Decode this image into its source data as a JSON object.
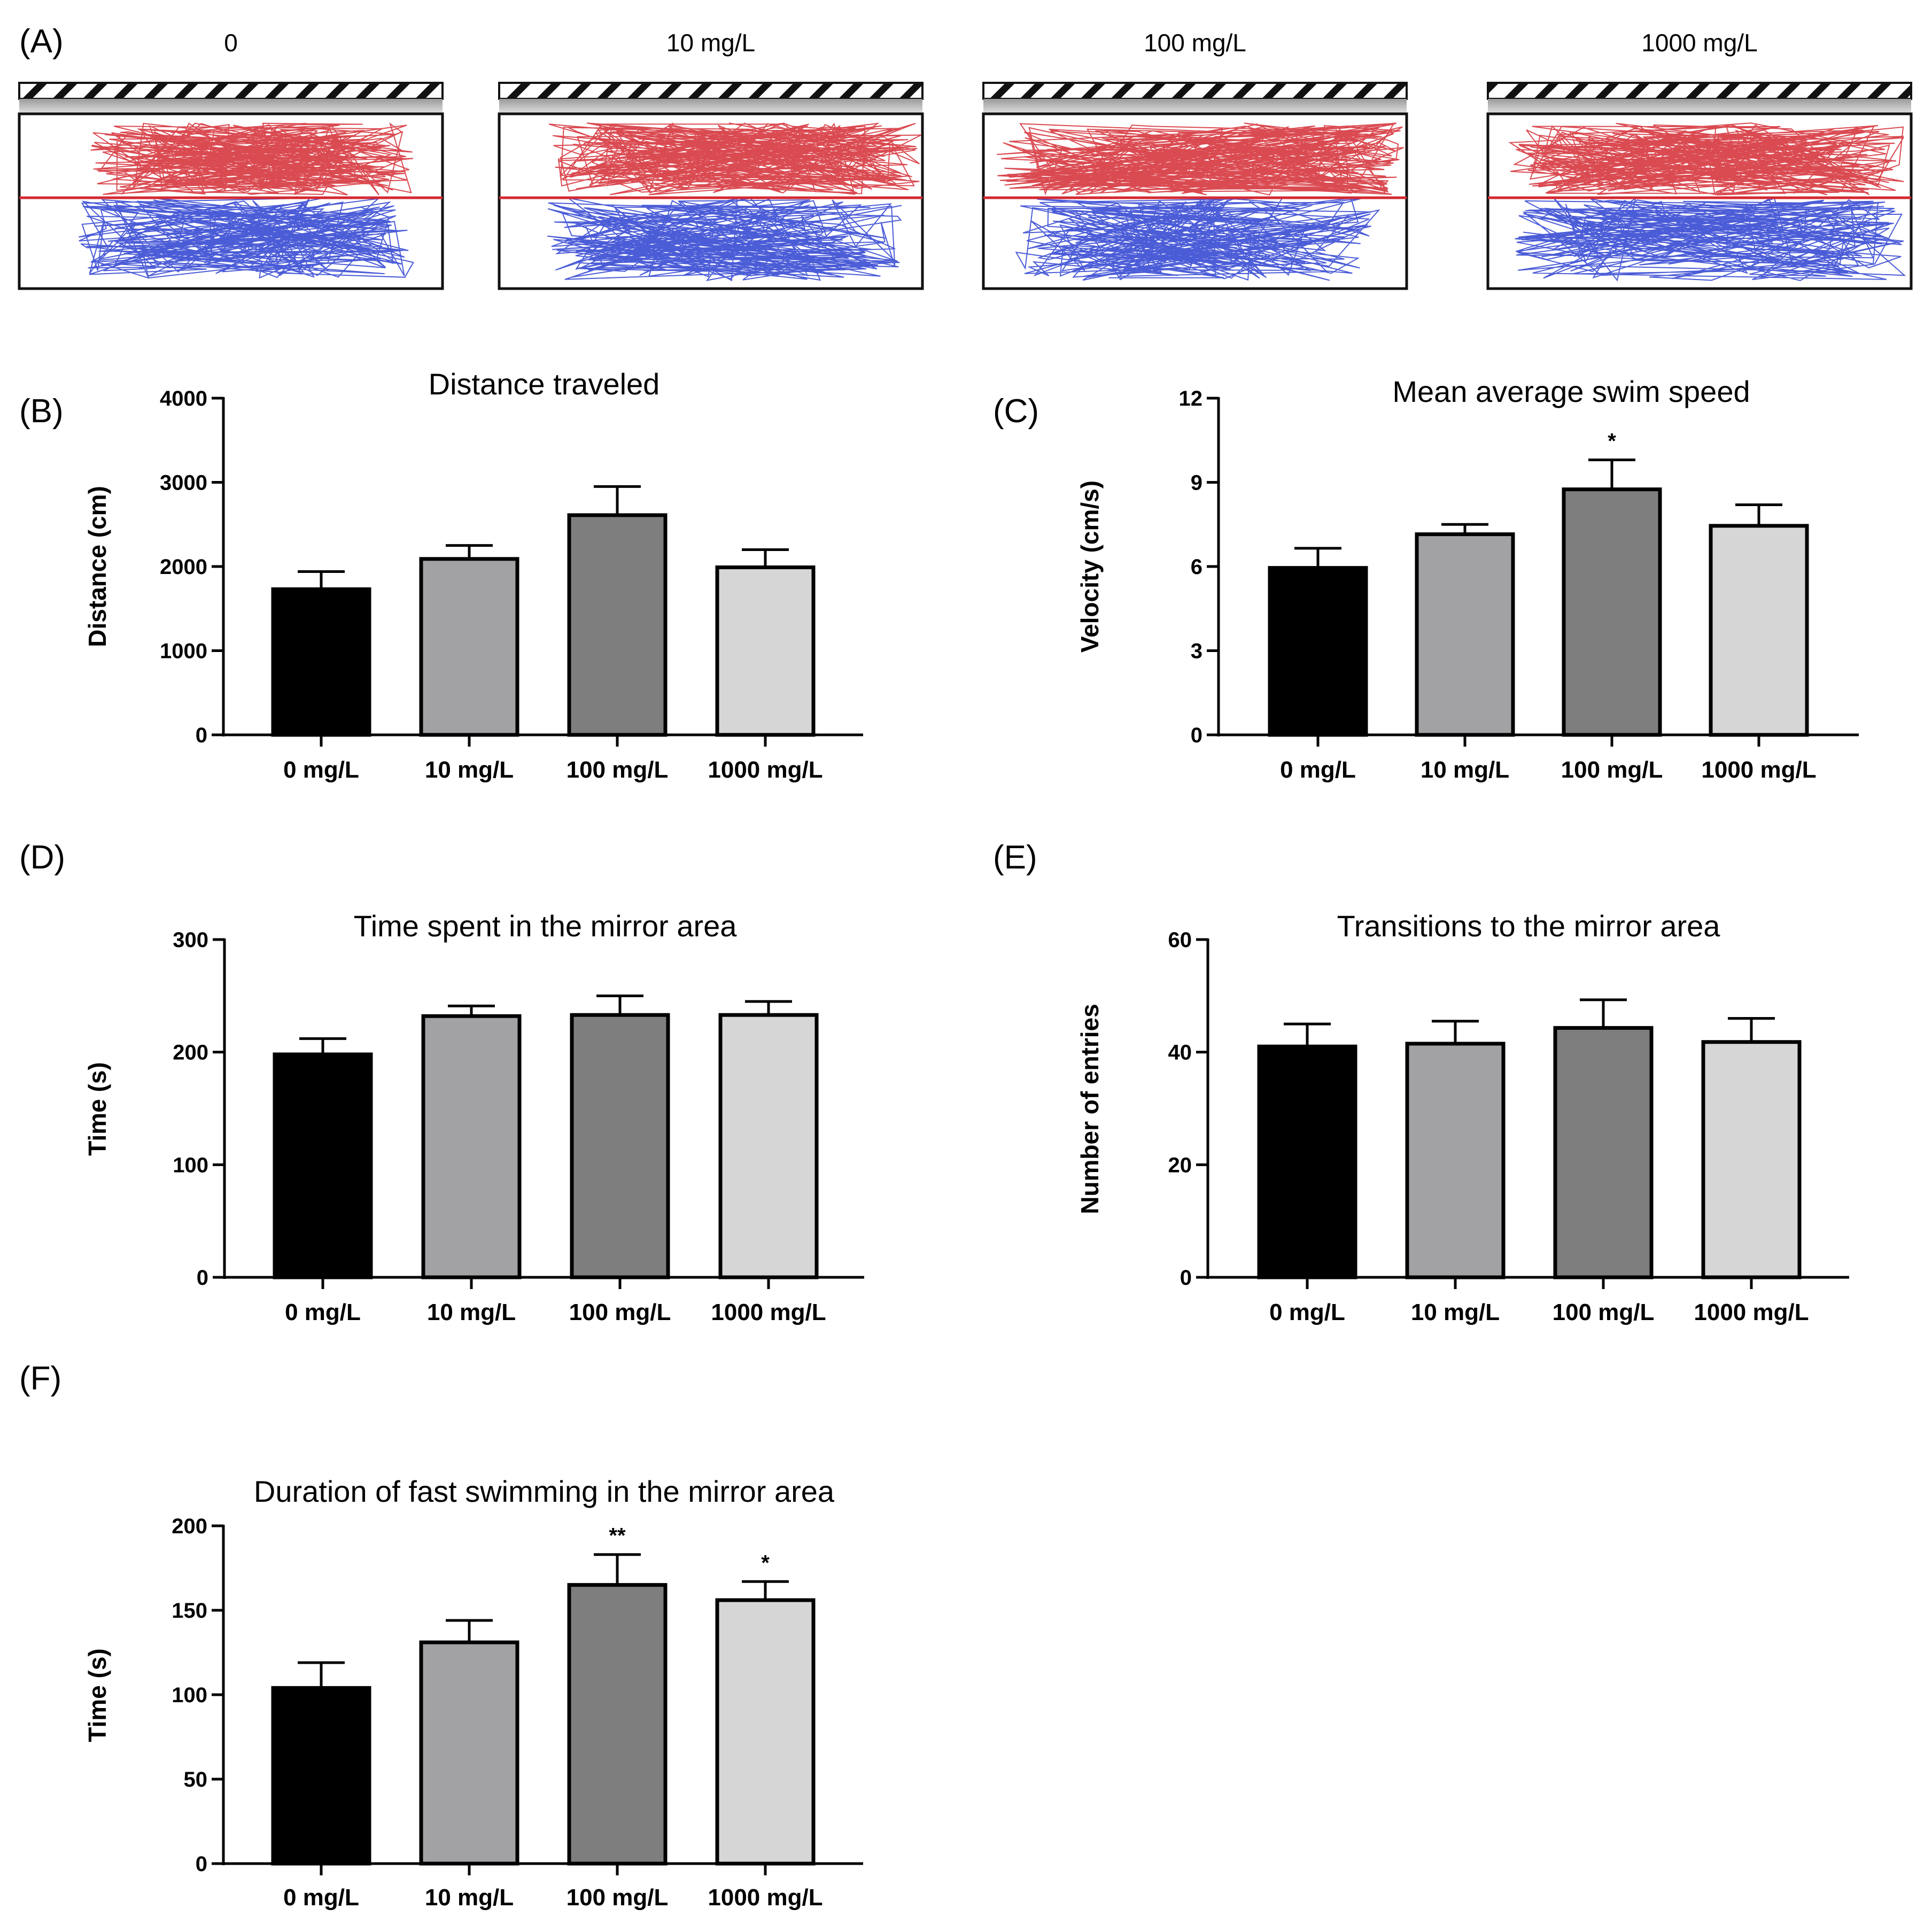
{
  "panel_a": {
    "label": "(A)",
    "arenas": [
      {
        "title": "0"
      },
      {
        "title": "10 mg/L"
      },
      {
        "title": "100 mg/L"
      },
      {
        "title": "1000 mg/L"
      }
    ],
    "colors": {
      "mirror_zone": "#d42a32",
      "other_zone": "#2b3fd0"
    }
  },
  "chart_data": [
    {
      "id": "B",
      "panel_label": "(B)",
      "type": "bar",
      "title": "Distance traveled",
      "xlabel": "",
      "ylabel": "Distance (cm)",
      "categories": [
        "0  mg/L",
        "10 mg/L",
        "100 mg/L",
        "1000 mg/L"
      ],
      "values": [
        1730,
        2090,
        2610,
        1990
      ],
      "errors": [
        210,
        160,
        340,
        210
      ],
      "significance": [
        "",
        "",
        "",
        ""
      ],
      "ylim": [
        0,
        4000
      ],
      "yticks": [
        0,
        1000,
        2000,
        3000,
        4000
      ]
    },
    {
      "id": "C",
      "panel_label": "(C)",
      "type": "bar",
      "title": "Mean average swim speed",
      "xlabel": "",
      "ylabel": "Velocity (cm/s)",
      "categories": [
        "0  mg/L",
        "10 mg/L",
        "100 mg/L",
        "1000 mg/L"
      ],
      "values": [
        5.95,
        7.15,
        8.75,
        7.45
      ],
      "errors": [
        0.7,
        0.35,
        1.05,
        0.75
      ],
      "significance": [
        "",
        "",
        "*",
        ""
      ],
      "ylim": [
        0,
        12
      ],
      "yticks": [
        0,
        3,
        6,
        9,
        12
      ]
    },
    {
      "id": "D",
      "panel_label": "(D)",
      "type": "bar",
      "title": "Time spent in the mirror area",
      "xlabel": "",
      "ylabel": "Time (s)",
      "categories": [
        "0  mg/L",
        "10 mg/L",
        "100 mg/L",
        "1000 mg/L"
      ],
      "values": [
        198,
        232,
        233,
        233
      ],
      "errors": [
        14,
        9,
        17,
        12
      ],
      "significance": [
        "",
        "",
        "",
        ""
      ],
      "ylim": [
        0,
        300
      ],
      "yticks": [
        0,
        100,
        200,
        300
      ]
    },
    {
      "id": "E",
      "panel_label": "(E)",
      "type": "bar",
      "title": "Transitions to the mirror area",
      "xlabel": "",
      "ylabel": "Number of entries",
      "categories": [
        "0  mg/L",
        "10 mg/L",
        "100 mg/L",
        "1000 mg/L"
      ],
      "values": [
        41,
        41.5,
        44.3,
        41.8
      ],
      "errors": [
        4,
        4,
        5,
        4.2
      ],
      "significance": [
        "",
        "",
        "",
        ""
      ],
      "ylim": [
        0,
        60
      ],
      "yticks": [
        0,
        20,
        40,
        60
      ]
    },
    {
      "id": "F",
      "panel_label": "(F)",
      "type": "bar",
      "title": "Duration of fast swimming in the mirror area",
      "xlabel": "",
      "ylabel": "Time (s)",
      "categories": [
        "0  mg/L",
        "10 mg/L",
        "100 mg/L",
        "1000 mg/L"
      ],
      "values": [
        104,
        131,
        165,
        156
      ],
      "errors": [
        15,
        13,
        18,
        11
      ],
      "significance": [
        "",
        "",
        "**",
        "*"
      ],
      "ylim": [
        0,
        200
      ],
      "yticks": [
        0,
        50,
        100,
        150,
        200
      ]
    }
  ],
  "bar_colors": [
    "#000000",
    "#a2a2a5",
    "#7e7e7e",
    "#d6d6d6"
  ]
}
